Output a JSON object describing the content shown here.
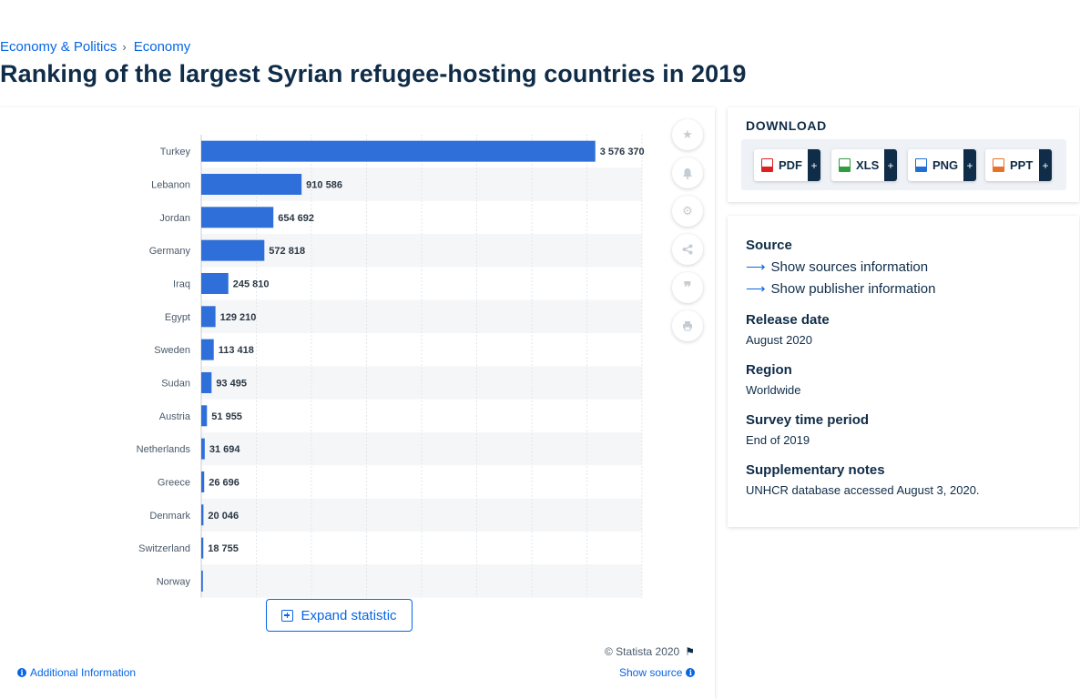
{
  "breadcrumb": {
    "item1": "Economy & Politics",
    "separator": "›",
    "item2": "Economy"
  },
  "page_title": "Ranking of the largest Syrian refugee-hosting countries in 2019",
  "chart_data": {
    "type": "bar",
    "orientation": "horizontal",
    "title": "",
    "xlabel": "",
    "ylabel": "",
    "categories": [
      "Turkey",
      "Lebanon",
      "Jordan",
      "Germany",
      "Iraq",
      "Egypt",
      "Sweden",
      "Sudan",
      "Austria",
      "Netherlands",
      "Greece",
      "Denmark",
      "Switzerland",
      "Norway"
    ],
    "values": [
      3576370,
      910586,
      654692,
      572818,
      245810,
      129210,
      113418,
      93495,
      51955,
      31694,
      26696,
      20046,
      18755,
      15000
    ],
    "value_labels": [
      "3 576 370",
      "910 586",
      "654 692",
      "572 818",
      "245 810",
      "129 210",
      "113 418",
      "93 495",
      "51 955",
      "31 694",
      "26 696",
      "20 046",
      "18 755",
      ""
    ],
    "xlim": [
      0,
      4000000
    ],
    "grid": true,
    "bar_color": "#2f6fd9"
  },
  "chart_tools": {
    "favorite_icon": "star-icon",
    "notify_icon": "bell-icon",
    "settings_icon": "gear-icon",
    "share_icon": "share-icon",
    "cite_icon": "quote-icon",
    "print_icon": "print-icon"
  },
  "expand_label": "Expand statistic",
  "copyright": "© Statista 2020",
  "additional_info": "Additional Information",
  "show_source": "Show source",
  "download": {
    "heading": "DOWNLOAD",
    "buttons": [
      {
        "label": "PDF",
        "plus": "+",
        "color": "#e02020"
      },
      {
        "label": "XLS",
        "plus": "+",
        "color": "#2e9e3e"
      },
      {
        "label": "PNG",
        "plus": "+",
        "color": "#1f6fd6"
      },
      {
        "label": "PPT",
        "plus": "+",
        "color": "#e8722a"
      }
    ]
  },
  "details": {
    "source_label": "Source",
    "show_sources": "Show sources information",
    "show_publisher": "Show publisher information",
    "release_label": "Release date",
    "release_value": "August 2020",
    "region_label": "Region",
    "region_value": "Worldwide",
    "survey_label": "Survey time period",
    "survey_value": "End of 2019",
    "notes_label": "Supplementary notes",
    "notes_value": "UNHCR database accessed August 3, 2020."
  }
}
